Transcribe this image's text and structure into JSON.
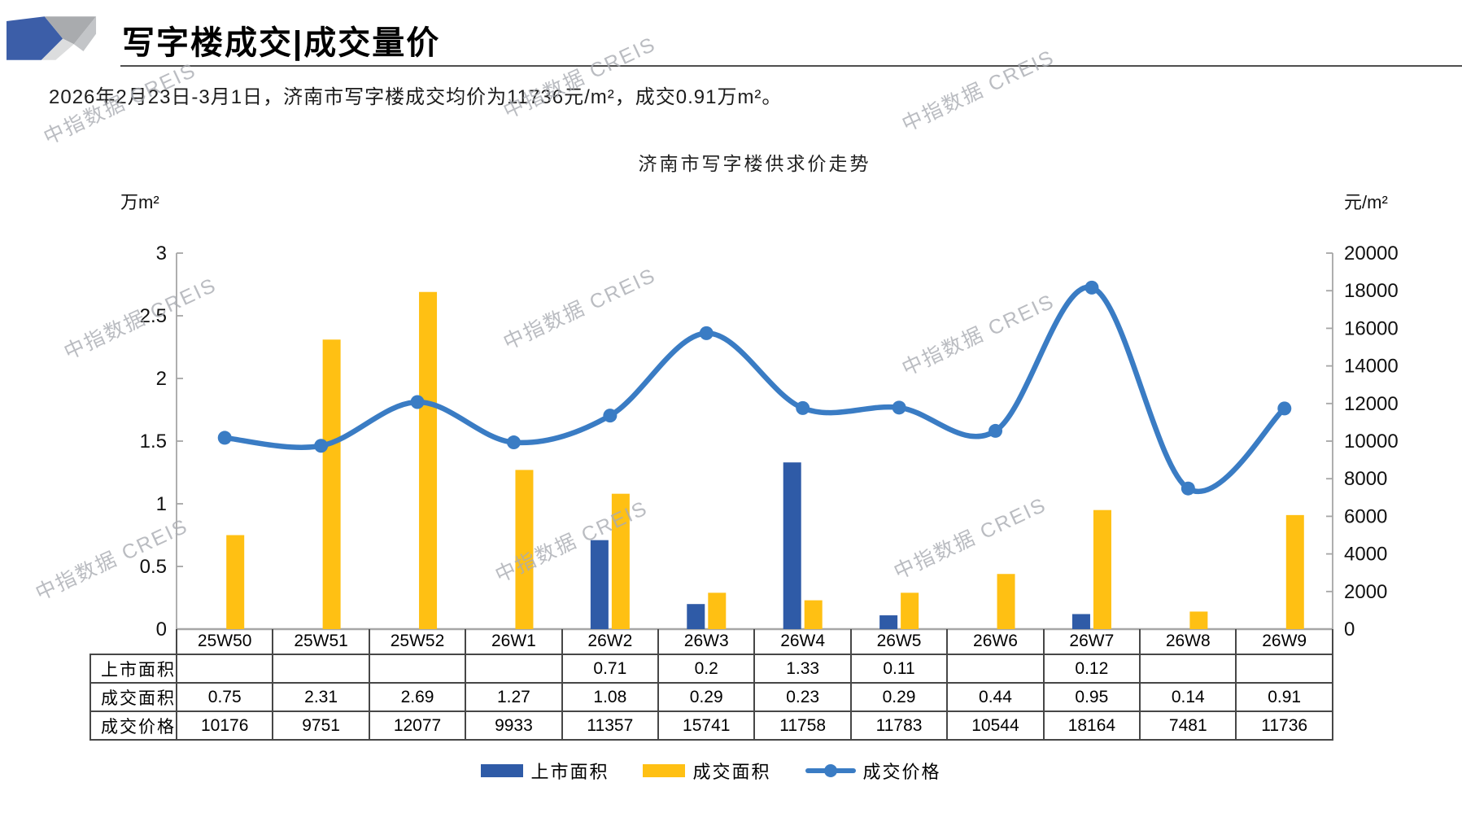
{
  "header": {
    "title": "写字楼成交|成交量价"
  },
  "subtitle": "2026年2月23日-3月1日，济南市写字楼成交均价为11736元/m²，成交0.91万m²。",
  "watermark": {
    "text": "中指数据 CREIS"
  },
  "chart_data": {
    "type": "combo",
    "title": "济南市写字楼供求价走势",
    "categories": [
      "25W50",
      "25W51",
      "25W52",
      "26W1",
      "26W2",
      "26W3",
      "26W4",
      "26W5",
      "26W6",
      "26W7",
      "26W8",
      "26W9"
    ],
    "series": [
      {
        "name": "上市面积",
        "type": "bar",
        "axis": "left",
        "color": "#2F5BA7",
        "values": [
          null,
          null,
          null,
          null,
          0.71,
          0.2,
          1.33,
          0.11,
          null,
          0.12,
          null,
          null
        ]
      },
      {
        "name": "成交面积",
        "type": "bar",
        "axis": "left",
        "color": "#FFC013",
        "values": [
          0.75,
          2.31,
          2.69,
          1.27,
          1.08,
          0.29,
          0.23,
          0.29,
          0.44,
          0.95,
          0.14,
          0.91
        ]
      },
      {
        "name": "成交价格",
        "type": "line",
        "axis": "right",
        "color": "#3A7CC4",
        "values": [
          10176,
          9751,
          12077,
          9933,
          11357,
          15741,
          11758,
          11783,
          10544,
          18164,
          7481,
          11736
        ]
      }
    ],
    "left_axis": {
      "label": "万m²",
      "min": 0,
      "max": 3,
      "step": 0.5,
      "ticks": [
        "3",
        "2.5",
        "2",
        "1.5",
        "1",
        "0.5",
        "0"
      ]
    },
    "right_axis": {
      "label": "元/m²",
      "min": 0,
      "max": 20000,
      "step": 2000,
      "ticks": [
        "20000",
        "18000",
        "16000",
        "14000",
        "12000",
        "10000",
        "8000",
        "6000",
        "4000",
        "2000",
        "0"
      ]
    },
    "legend_position": "bottom",
    "grid": false
  },
  "table": {
    "row_headers": [
      "上市面积",
      "成交面积",
      "成交价格"
    ],
    "rows": [
      [
        "",
        "",
        "",
        "",
        "0.71",
        "0.2",
        "1.33",
        "0.11",
        "",
        "0.12",
        "",
        ""
      ],
      [
        "0.75",
        "2.31",
        "2.69",
        "1.27",
        "1.08",
        "0.29",
        "0.23",
        "0.29",
        "0.44",
        "0.95",
        "0.14",
        "0.91"
      ],
      [
        "10176",
        "9751",
        "12077",
        "9933",
        "11357",
        "15741",
        "11758",
        "11783",
        "10544",
        "18164",
        "7481",
        "11736"
      ]
    ]
  },
  "colors": {
    "bar_blue": "#2F5BA7",
    "bar_yellow": "#FFC013",
    "line_blue": "#3A7CC4",
    "axis_gray": "#A6A6A6",
    "table_border": "#474747"
  }
}
